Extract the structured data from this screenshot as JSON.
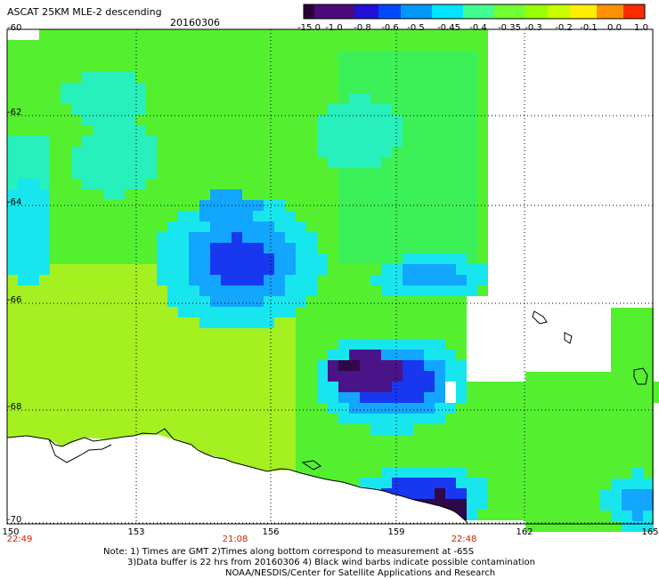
{
  "header": {
    "title": "ASCAT 25KM MLE-2 descending",
    "date": "20160306"
  },
  "colorbar": {
    "labels": [
      "-15.0",
      "-1.0",
      "-0.8",
      "-0.6",
      "-0.5",
      "-0.45",
      "-0.4",
      "-0.35",
      "-0.3",
      "-0.2",
      "-0.1",
      "0.0",
      "1.0"
    ],
    "colors": [
      "#2a0038",
      "#4c0a78",
      "#2010d8",
      "#0048ff",
      "#0098ff",
      "#00e4ff",
      "#40ff90",
      "#70ff30",
      "#98ff00",
      "#c8ff00",
      "#ffee00",
      "#ff9000",
      "#ff2a00"
    ]
  },
  "axes": {
    "lat_labels": [
      "-60",
      "-62",
      "-64",
      "-66",
      "-68",
      "-70"
    ],
    "lon_labels": [
      "150",
      "153",
      "156",
      "159",
      "162",
      "165"
    ],
    "time_labels": [
      "22:49",
      "21:08",
      "22:48"
    ]
  },
  "footer": {
    "line1": "Note: 1) Times are GMT 2)Times along bottom correspond to measurement at -65S",
    "line2": "3)Data buffer is 22 hrs from 20160306 4) Black wind barbs indicate possible contamination",
    "line3": "NOAA/NESDIS/Center for Satellite Applications and Research"
  },
  "map_data": {
    "lon_range": [
      150,
      165
    ],
    "lat_range": [
      -70,
      -60
    ],
    "palette": {
      "lime": "#a4f020",
      "green": "#54f030",
      "bright_green": "#3cf058",
      "aqua": "#28f0bc",
      "cyan": "#18e6ee",
      "sky": "#12a6ff",
      "blue": "#1838f0",
      "deep_blue": "#2018c8",
      "indigo": "#4a1488",
      "dark_purple": "#300848"
    }
  }
}
